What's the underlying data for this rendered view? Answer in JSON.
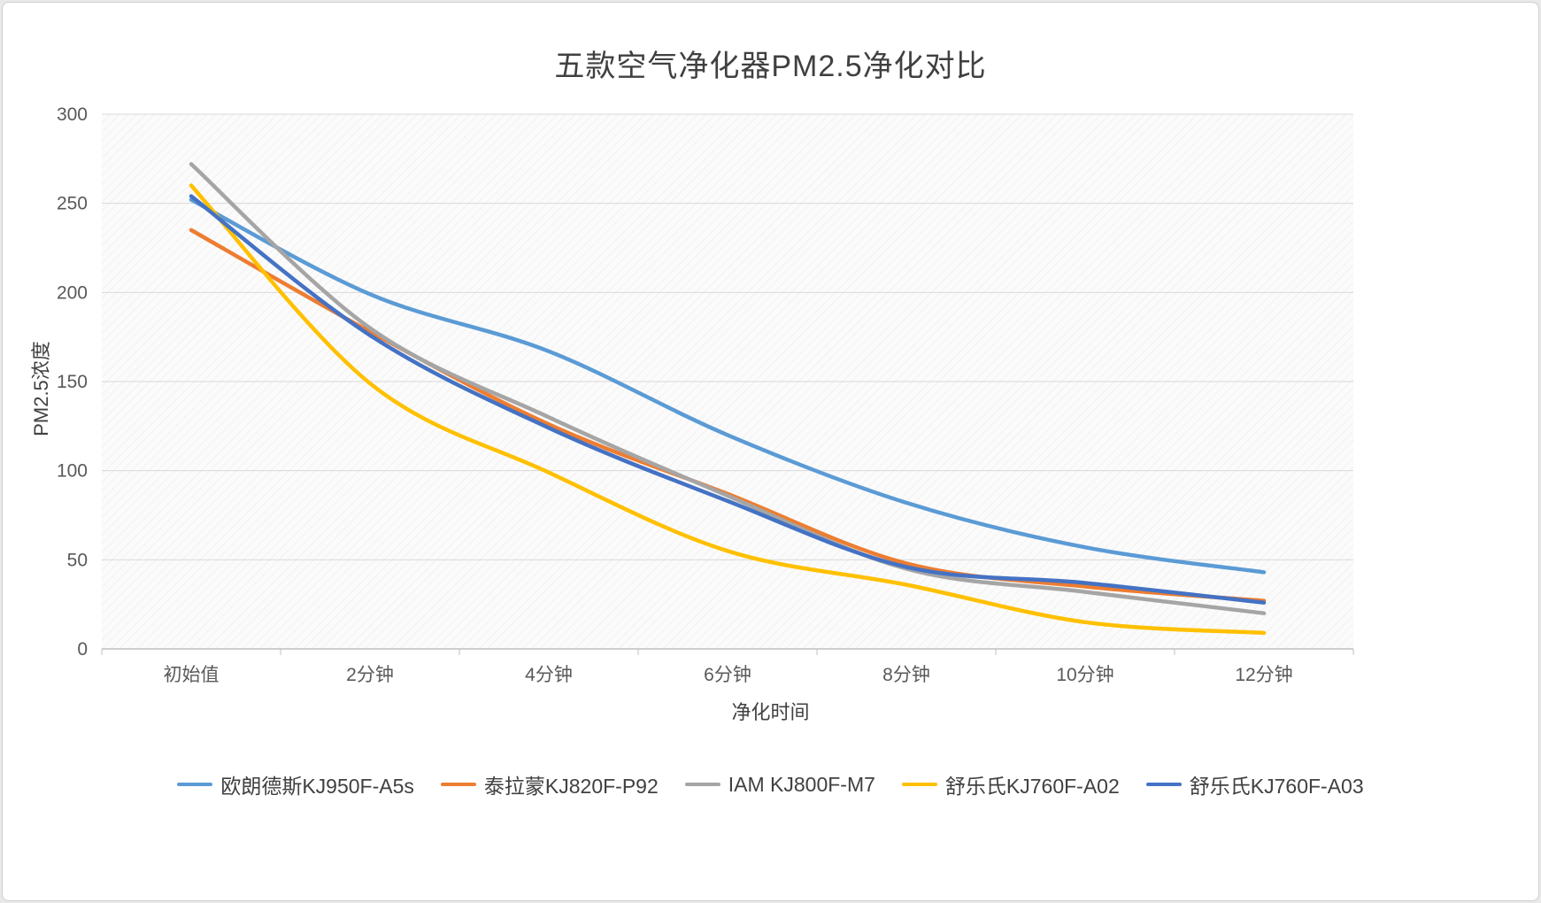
{
  "chart_data": {
    "type": "line",
    "title": "五款空气净化器PM2.5净化对比",
    "xlabel": "净化时间",
    "ylabel": "PM2.5浓度",
    "categories": [
      "初始值",
      "2分钟",
      "4分钟",
      "6分钟",
      "8分钟",
      "10分钟",
      "12分钟"
    ],
    "series": [
      {
        "name": "欧朗德斯KJ950F-A5s",
        "color": "#5B9BD5",
        "values": [
          252,
          199,
          167,
          120,
          82,
          57,
          43
        ]
      },
      {
        "name": "泰拉蒙KJ820F-P92",
        "color": "#ED7D31",
        "values": [
          235,
          178,
          126,
          87,
          48,
          35,
          27
        ]
      },
      {
        "name": "IAM KJ800F-M7",
        "color": "#A5A5A5",
        "values": [
          272,
          180,
          130,
          86,
          45,
          32,
          20
        ]
      },
      {
        "name": "舒乐氏KJ760F-A02",
        "color": "#FFC000",
        "values": [
          260,
          149,
          99,
          55,
          36,
          15,
          9
        ]
      },
      {
        "name": "舒乐氏KJ760F-A03",
        "color": "#4472C4",
        "values": [
          254,
          176,
          124,
          83,
          46,
          37,
          26
        ]
      }
    ],
    "y_ticks": [
      0,
      50,
      100,
      150,
      200,
      250,
      300
    ],
    "ylim": [
      0,
      300
    ],
    "grid": "horizontal",
    "legend_position": "bottom",
    "colors": {
      "grid_line": "#d9d9d9",
      "axis_line": "#bfbfbf",
      "tick_label": "#595959",
      "text": "#404040",
      "plot_background": "#fbfbfb"
    }
  }
}
